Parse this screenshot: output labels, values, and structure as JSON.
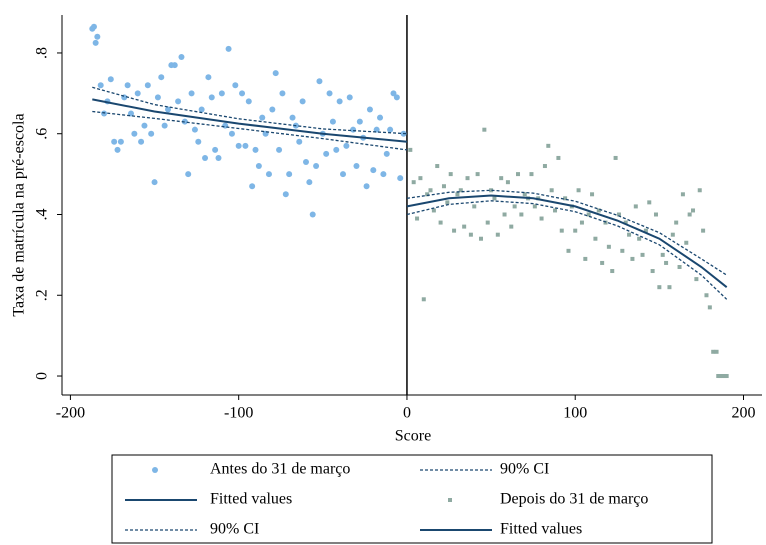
{
  "chart_data": {
    "type": "scatter",
    "xlabel": "Score",
    "ylabel": "Taxa de matrícula na pré-escola",
    "xlim": [
      -205,
      211
    ],
    "ylim": [
      -0.047,
      0.894
    ],
    "xticks": [
      -200,
      -100,
      0,
      100,
      200
    ],
    "yticks": [
      0,
      {
        "value": 0.2,
        "label": ".2"
      },
      {
        "value": 0.4,
        "label": ".4"
      },
      {
        "value": 0.6,
        "label": ".6"
      },
      {
        "value": 0.8,
        "label": ".8"
      }
    ],
    "vline": 0,
    "series": [
      {
        "type": "scatter",
        "marker": "circle",
        "name": "Antes do 31 de março",
        "color": "#7eb6e6",
        "x": [
          -187,
          -186,
          -185,
          -184,
          -182,
          -180,
          -178,
          -176,
          -174,
          -172,
          -170,
          -168,
          -166,
          -164,
          -162,
          -160,
          -158,
          -156,
          -154,
          -152,
          -150,
          -148,
          -146,
          -144,
          -142,
          -140,
          -138,
          -136,
          -134,
          -132,
          -130,
          -128,
          -126,
          -124,
          -122,
          -120,
          -118,
          -116,
          -114,
          -112,
          -110,
          -108,
          -106,
          -104,
          -102,
          -100,
          -98,
          -96,
          -94,
          -92,
          -90,
          -88,
          -86,
          -84,
          -82,
          -80,
          -78,
          -76,
          -74,
          -72,
          -70,
          -68,
          -66,
          -64,
          -62,
          -60,
          -58,
          -56,
          -54,
          -52,
          -50,
          -48,
          -46,
          -44,
          -42,
          -40,
          -38,
          -36,
          -34,
          -32,
          -30,
          -28,
          -26,
          -24,
          -22,
          -20,
          -18,
          -16,
          -14,
          -12,
          -10,
          -8,
          -6,
          -4,
          -2
        ],
        "values": [
          0.86,
          0.865,
          0.825,
          0.84,
          0.72,
          0.65,
          0.68,
          0.735,
          0.58,
          0.56,
          0.58,
          0.69,
          0.72,
          0.65,
          0.6,
          0.7,
          0.58,
          0.62,
          0.72,
          0.6,
          0.48,
          0.69,
          0.74,
          0.62,
          0.66,
          0.77,
          0.77,
          0.68,
          0.79,
          0.63,
          0.5,
          0.7,
          0.61,
          0.58,
          0.66,
          0.54,
          0.74,
          0.69,
          0.56,
          0.54,
          0.7,
          0.62,
          0.81,
          0.6,
          0.72,
          0.57,
          0.7,
          0.57,
          0.68,
          0.47,
          0.56,
          0.52,
          0.64,
          0.6,
          0.5,
          0.66,
          0.75,
          0.56,
          0.7,
          0.45,
          0.5,
          0.64,
          0.62,
          0.58,
          0.68,
          0.53,
          0.48,
          0.4,
          0.52,
          0.73,
          0.6,
          0.55,
          0.7,
          0.63,
          0.56,
          0.68,
          0.5,
          0.57,
          0.69,
          0.61,
          0.52,
          0.63,
          0.59,
          0.47,
          0.66,
          0.51,
          0.61,
          0.64,
          0.5,
          0.55,
          0.61,
          0.7,
          0.69,
          0.49,
          0.6
        ]
      },
      {
        "type": "ci",
        "name": "90% CI",
        "color": "#1a476f",
        "x": [
          -187,
          -150,
          -100,
          -50,
          0
        ],
        "upper": [
          0.715,
          0.672,
          0.637,
          0.612,
          0.6
        ],
        "lower": [
          0.655,
          0.638,
          0.613,
          0.588,
          0.56
        ]
      },
      {
        "type": "line",
        "name": "Fitted values",
        "color": "#1a476f",
        "x": [
          -187,
          -150,
          -100,
          -50,
          0
        ],
        "values": [
          0.685,
          0.655,
          0.625,
          0.6,
          0.58
        ]
      },
      {
        "type": "scatter",
        "marker": "square",
        "name": "Depois do 31 de março",
        "color": "#8faaa2",
        "x": [
          2,
          4,
          6,
          8,
          10,
          12,
          14,
          16,
          18,
          20,
          22,
          24,
          26,
          28,
          30,
          32,
          34,
          36,
          38,
          40,
          42,
          44,
          46,
          48,
          50,
          52,
          54,
          56,
          58,
          60,
          62,
          64,
          66,
          68,
          70,
          72,
          74,
          76,
          78,
          80,
          82,
          84,
          86,
          88,
          90,
          92,
          94,
          96,
          98,
          100,
          102,
          104,
          106,
          108,
          110,
          112,
          114,
          116,
          118,
          120,
          122,
          124,
          126,
          128,
          130,
          132,
          134,
          136,
          138,
          140,
          142,
          144,
          146,
          148,
          150,
          152,
          154,
          156,
          158,
          160,
          162,
          164,
          166,
          168,
          170,
          172,
          174,
          176,
          178,
          180,
          182,
          184,
          185,
          186,
          187,
          188,
          189,
          190
        ],
        "values": [
          0.56,
          0.48,
          0.39,
          0.49,
          0.19,
          0.45,
          0.46,
          0.41,
          0.52,
          0.38,
          0.47,
          0.43,
          0.5,
          0.36,
          0.45,
          0.46,
          0.37,
          0.49,
          0.35,
          0.42,
          0.5,
          0.34,
          0.61,
          0.38,
          0.46,
          0.44,
          0.35,
          0.49,
          0.4,
          0.48,
          0.37,
          0.42,
          0.5,
          0.4,
          0.45,
          0.44,
          0.5,
          0.42,
          0.44,
          0.39,
          0.52,
          0.57,
          0.46,
          0.41,
          0.54,
          0.36,
          0.44,
          0.31,
          0.42,
          0.36,
          0.46,
          0.38,
          0.29,
          0.4,
          0.45,
          0.34,
          0.41,
          0.28,
          0.38,
          0.32,
          0.26,
          0.54,
          0.4,
          0.31,
          0.38,
          0.35,
          0.29,
          0.42,
          0.34,
          0.3,
          0.36,
          0.43,
          0.26,
          0.4,
          0.22,
          0.3,
          0.28,
          0.22,
          0.35,
          0.38,
          0.27,
          0.45,
          0.33,
          0.4,
          0.41,
          0.24,
          0.46,
          0.36,
          0.2,
          0.17,
          0.06,
          0.06,
          0,
          0,
          0,
          0,
          0,
          0
        ]
      },
      {
        "type": "ci",
        "name": "90% CI",
        "color": "#1a476f",
        "x": [
          0,
          25,
          50,
          75,
          100,
          125,
          150,
          175,
          190
        ],
        "upper": [
          0.44,
          0.455,
          0.46,
          0.453,
          0.433,
          0.398,
          0.355,
          0.29,
          0.25
        ],
        "lower": [
          0.4,
          0.425,
          0.434,
          0.427,
          0.407,
          0.372,
          0.325,
          0.25,
          0.19
        ]
      },
      {
        "type": "line",
        "name": "Fitted values",
        "color": "#1a476f",
        "x": [
          0,
          25,
          50,
          75,
          100,
          125,
          150,
          175,
          190
        ],
        "values": [
          0.42,
          0.44,
          0.447,
          0.44,
          0.42,
          0.385,
          0.34,
          0.27,
          0.22
        ]
      }
    ]
  }
}
